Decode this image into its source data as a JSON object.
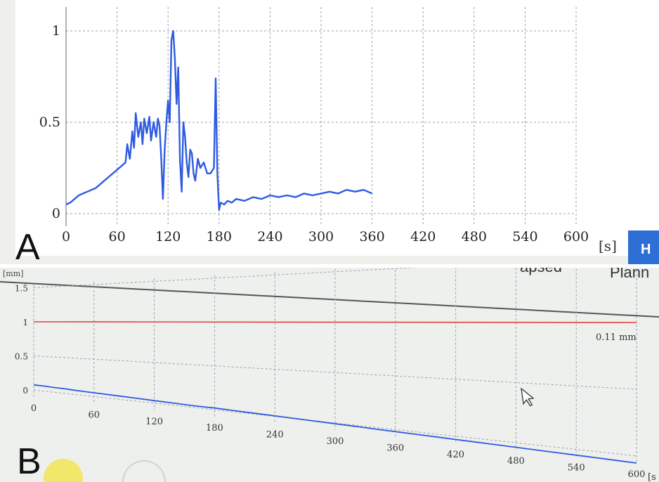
{
  "labels": {
    "panel_a": "A",
    "panel_b": "B"
  },
  "top_right_button": {
    "label": "H"
  },
  "panel_b_header": {
    "left_text": "apsed",
    "right_text": "Plann"
  },
  "colors": {
    "series": "#2e5be0",
    "limit_line": "#e0443a",
    "grid": "#9aa0a8",
    "button": "#2e6fd6"
  },
  "icons": [
    "cursor-arrow-icon"
  ],
  "chart_data": [
    {
      "type": "line",
      "xlabel_unit": "[s]",
      "ylabel": "",
      "xlim": [
        0,
        600
      ],
      "ylim": [
        0,
        1.05
      ],
      "xticks": [
        0,
        60,
        120,
        180,
        240,
        300,
        360,
        420,
        480,
        540,
        600
      ],
      "yticks": [
        0,
        0.5,
        1
      ],
      "ytick_labels": [
        "0",
        "0.5",
        "1"
      ],
      "grid": true,
      "series": [
        {
          "points": [
            [
              0,
              0.05
            ],
            [
              5,
              0.06
            ],
            [
              10,
              0.08
            ],
            [
              15,
              0.1
            ],
            [
              20,
              0.11
            ],
            [
              25,
              0.12
            ],
            [
              30,
              0.13
            ],
            [
              35,
              0.14
            ],
            [
              40,
              0.16
            ],
            [
              45,
              0.18
            ],
            [
              50,
              0.2
            ],
            [
              55,
              0.22
            ],
            [
              60,
              0.24
            ],
            [
              65,
              0.26
            ],
            [
              70,
              0.28
            ],
            [
              72,
              0.38
            ],
            [
              75,
              0.3
            ],
            [
              78,
              0.45
            ],
            [
              80,
              0.36
            ],
            [
              82,
              0.55
            ],
            [
              85,
              0.42
            ],
            [
              88,
              0.5
            ],
            [
              90,
              0.38
            ],
            [
              92,
              0.52
            ],
            [
              95,
              0.44
            ],
            [
              98,
              0.53
            ],
            [
              100,
              0.4
            ],
            [
              103,
              0.5
            ],
            [
              106,
              0.42
            ],
            [
              108,
              0.52
            ],
            [
              110,
              0.48
            ],
            [
              112,
              0.3
            ],
            [
              114,
              0.08
            ],
            [
              116,
              0.35
            ],
            [
              118,
              0.5
            ],
            [
              120,
              0.62
            ],
            [
              122,
              0.5
            ],
            [
              124,
              0.95
            ],
            [
              126,
              1.0
            ],
            [
              128,
              0.85
            ],
            [
              130,
              0.6
            ],
            [
              132,
              0.8
            ],
            [
              134,
              0.3
            ],
            [
              136,
              0.12
            ],
            [
              138,
              0.5
            ],
            [
              140,
              0.42
            ],
            [
              142,
              0.28
            ],
            [
              144,
              0.2
            ],
            [
              146,
              0.35
            ],
            [
              148,
              0.33
            ],
            [
              150,
              0.22
            ],
            [
              152,
              0.18
            ],
            [
              155,
              0.3
            ],
            [
              158,
              0.25
            ],
            [
              162,
              0.28
            ],
            [
              166,
              0.22
            ],
            [
              170,
              0.22
            ],
            [
              174,
              0.25
            ],
            [
              176,
              0.74
            ],
            [
              178,
              0.22
            ],
            [
              180,
              0.02
            ],
            [
              182,
              0.06
            ],
            [
              186,
              0.05
            ],
            [
              190,
              0.07
            ],
            [
              195,
              0.06
            ],
            [
              200,
              0.08
            ],
            [
              210,
              0.07
            ],
            [
              220,
              0.09
            ],
            [
              230,
              0.08
            ],
            [
              240,
              0.1
            ],
            [
              250,
              0.09
            ],
            [
              260,
              0.1
            ],
            [
              270,
              0.09
            ],
            [
              280,
              0.11
            ],
            [
              290,
              0.1
            ],
            [
              300,
              0.11
            ],
            [
              310,
              0.12
            ],
            [
              320,
              0.11
            ],
            [
              330,
              0.13
            ],
            [
              340,
              0.12
            ],
            [
              350,
              0.13
            ],
            [
              360,
              0.11
            ]
          ]
        }
      ]
    },
    {
      "type": "line",
      "ylabel": "[mm]",
      "xlabel_unit": "[s",
      "xlim": [
        0,
        600
      ],
      "ylim": [
        0,
        1.5
      ],
      "xticks": [
        0,
        60,
        120,
        180,
        240,
        300,
        360,
        420,
        480,
        540,
        600
      ],
      "yticks": [
        0,
        0.5,
        1,
        1.5
      ],
      "ytick_labels": [
        "0",
        "0.5",
        "1",
        "1.5"
      ],
      "grid": true,
      "annotations": [
        {
          "text": "0.11 mm"
        }
      ],
      "series": [
        {
          "type": "constant",
          "y": 1.0
        },
        {
          "points": [
            [
              0,
              0.12
            ],
            [
              10,
              0.12
            ],
            [
              20,
              0.11
            ],
            [
              30,
              0.11
            ],
            [
              40,
              0.1
            ],
            [
              60,
              0.09
            ],
            [
              80,
              0.08
            ],
            [
              100,
              0.07
            ],
            [
              120,
              0.06
            ],
            [
              140,
              0.05
            ],
            [
              160,
              0.04
            ],
            [
              180,
              0.04
            ],
            [
              200,
              0.03
            ],
            [
              220,
              0.02
            ],
            [
              240,
              0.01
            ],
            [
              260,
              0.0
            ],
            [
              280,
              -0.01
            ],
            [
              300,
              -0.02
            ],
            [
              320,
              -0.03
            ],
            [
              340,
              -0.04
            ],
            [
              360,
              -0.05
            ],
            [
              380,
              -0.06
            ],
            [
              400,
              -0.07
            ],
            [
              420,
              -0.08
            ],
            [
              440,
              -0.09
            ],
            [
              460,
              -0.1
            ],
            [
              480,
              -0.11
            ],
            [
              500,
              -0.12
            ],
            [
              520,
              -0.13
            ],
            [
              540,
              -0.14
            ],
            [
              560,
              -0.15
            ],
            [
              580,
              -0.16
            ],
            [
              600,
              -0.17
            ]
          ]
        }
      ]
    }
  ]
}
